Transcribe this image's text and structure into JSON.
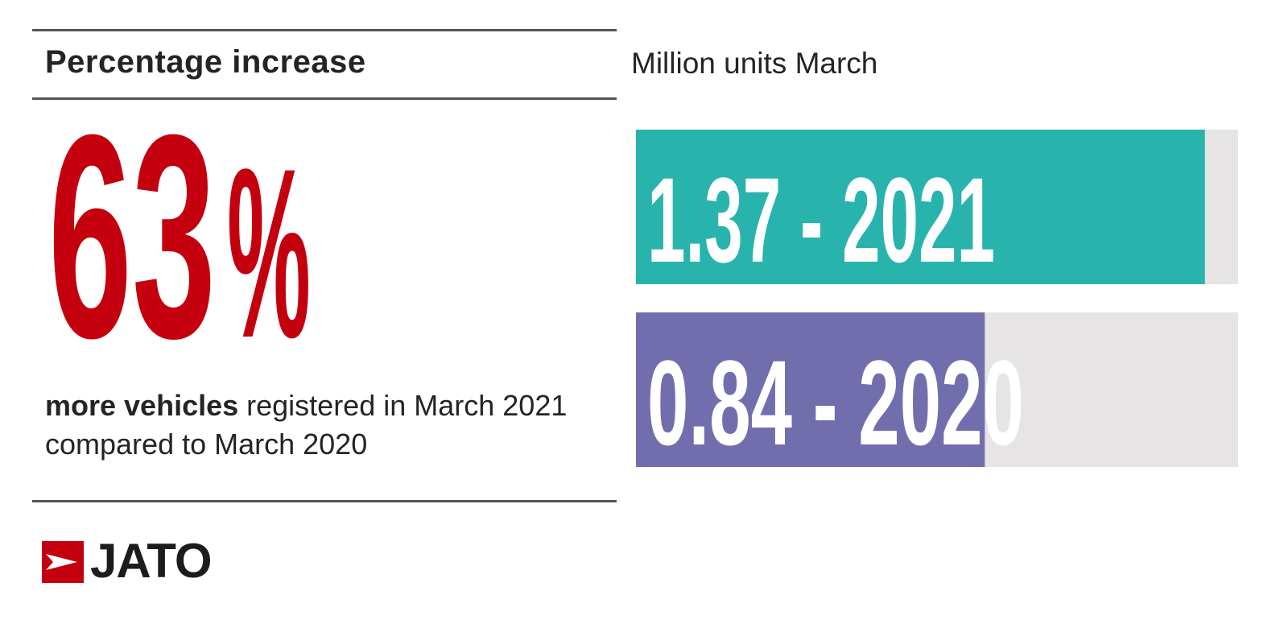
{
  "left_panel": {
    "heading": "Percentage increase",
    "big_value": "63",
    "big_unit": "%",
    "caption_bold": "more vehicles",
    "caption_rest": " registered in March 2021 compared to March 2020"
  },
  "chart_data": {
    "type": "bar",
    "orientation": "horizontal",
    "title": "Million units March",
    "xlabel": "",
    "ylabel": "",
    "grid": false,
    "xlim": [
      0,
      1.45
    ],
    "categories": [
      "2021",
      "2020"
    ],
    "values": [
      1.37,
      0.84
    ],
    "labels": [
      "1.37 - 2021",
      "0.84 - 2020"
    ],
    "colors": [
      "#28b3ad",
      "#726eae"
    ],
    "track_color": "#e6e4e5"
  },
  "brand": {
    "name": "JATO",
    "accent": "#c4000f"
  },
  "colors": {
    "big_figure": "#c4000f",
    "text": "#222426",
    "rule": "#555555"
  }
}
